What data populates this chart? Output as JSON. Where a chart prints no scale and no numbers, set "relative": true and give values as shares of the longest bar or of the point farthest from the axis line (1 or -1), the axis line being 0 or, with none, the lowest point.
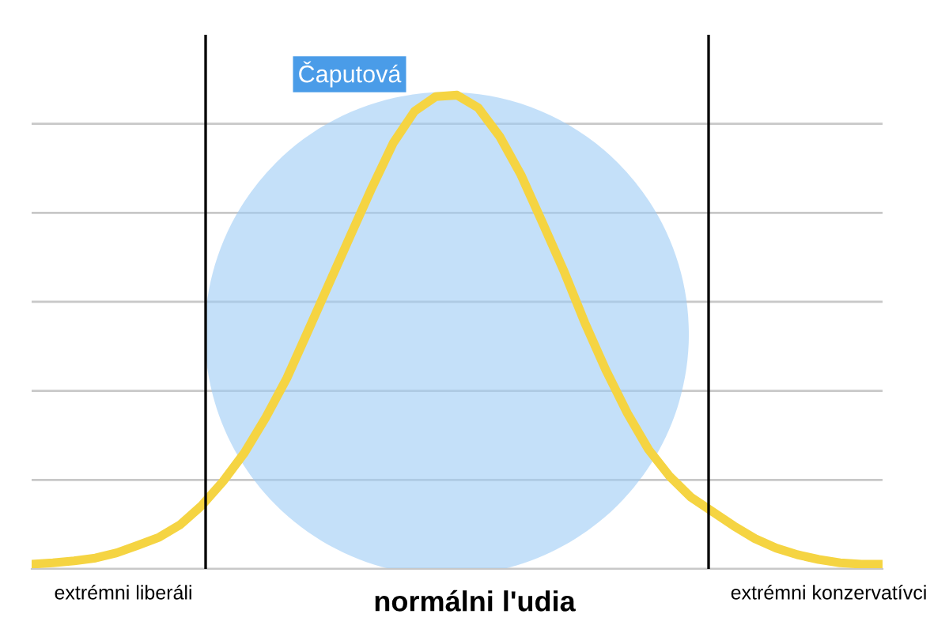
{
  "chart_data": {
    "type": "line",
    "relative": true,
    "grid": "y",
    "marker": "none",
    "line_style": "solid",
    "categories": [
      null,
      null,
      null,
      null,
      null,
      null,
      null,
      null,
      null,
      null,
      null,
      null,
      null,
      null,
      null,
      null,
      null,
      null,
      null,
      null,
      null,
      null,
      null,
      null,
      null,
      null,
      null,
      null,
      null,
      null,
      null,
      null,
      null,
      null,
      null,
      null,
      null,
      null,
      null,
      null,
      null
    ],
    "series": [
      {
        "color": "#f5d442",
        "values": [
          0.01,
          0.013,
          0.017,
          0.023,
          0.034,
          0.05,
          0.067,
          0.094,
          0.134,
          0.185,
          0.245,
          0.319,
          0.403,
          0.503,
          0.604,
          0.705,
          0.805,
          0.899,
          0.966,
          0.997,
          1.0,
          0.973,
          0.913,
          0.832,
          0.732,
          0.631,
          0.52,
          0.419,
          0.329,
          0.252,
          0.195,
          0.151,
          0.121,
          0.091,
          0.064,
          0.044,
          0.03,
          0.02,
          0.013,
          0.01,
          0.01
        ]
      }
    ],
    "xlabel": "normálni l'udia",
    "annotations": [
      "Čaputová",
      "extrémni liberáli",
      "extrémni konzervatívci"
    ]
  }
}
